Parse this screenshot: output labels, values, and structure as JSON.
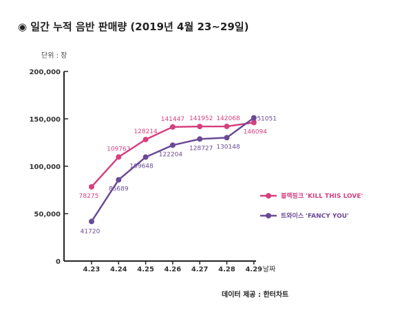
{
  "title": "◉ 일간 누적 음반 판매량 (2019년 4월 23~29일)",
  "unit_label": "단위 : 장",
  "source_label": "데이터 제공 : 한터차트",
  "chart_data": {
    "type": "line",
    "title": "◉ 일간 누적 음반 판매량 (2019년 4월 23~29일)",
    "xlabel": "날짜",
    "ylabel": "단위 : 장",
    "categories": [
      "4.23",
      "4.24",
      "4.25",
      "4.26",
      "4.27",
      "4.28",
      "4.29"
    ],
    "ylim": [
      0,
      200000
    ],
    "yticks": [
      "0",
      "50,000",
      "100,000",
      "150,000",
      "200,000"
    ],
    "grid": false,
    "legend": "right",
    "series": [
      {
        "name": "블랙핑크 'KILL THIS LOVE'",
        "color": "#d6407f",
        "values": [
          78275,
          109763,
          128214,
          141447,
          141952,
          142068,
          146094
        ]
      },
      {
        "name": "트와이스 'FANCY YOU'",
        "color": "#6a4a96",
        "values": [
          41720,
          85689,
          109648,
          122204,
          128727,
          130148,
          151051
        ]
      }
    ]
  }
}
